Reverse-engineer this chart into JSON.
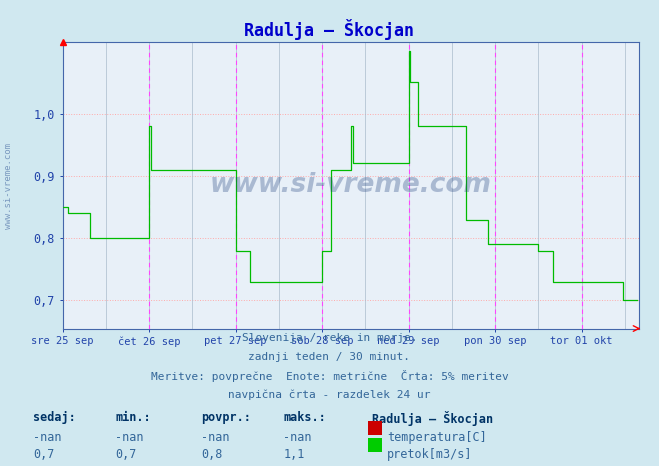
{
  "title": "Radulja – Škocjan",
  "title_color": "#0000cc",
  "bg_color": "#d0e8f0",
  "plot_bg_color": "#e8f0f8",
  "grid_color_h": "#ffaaaa",
  "grid_color_v": "#ccddee",
  "vline_day_color": "#ff44ff",
  "vline_12h_color": "#aabbcc",
  "line_color_flow": "#00bb00",
  "axis_color": "#4466aa",
  "tick_color": "#2244aa",
  "ylim": [
    0.655,
    1.115
  ],
  "yticks": [
    0.7,
    0.8,
    0.9,
    1.0
  ],
  "footer_line1": "Slovenija / reke in morje.",
  "footer_line2": "zadnji teden / 30 minut.",
  "footer_line3": "Meritve: povprečne  Enote: metrične  Črta: 5% meritev",
  "footer_line4": "navpična črta - razdelek 24 ur",
  "watermark": "www.si-vreme.com",
  "legend_title": "Radulja – Škocjan",
  "legend_temp_label": "temperatura[C]",
  "legend_flow_label": "pretok[m3/s]",
  "table_headers": [
    "sedaj:",
    "min.:",
    "povpr.:",
    "maks.:"
  ],
  "table_row_temp": [
    "-nan",
    "-nan",
    "-nan",
    "-nan"
  ],
  "table_row_flow": [
    "0,7",
    "0,7",
    "0,8",
    "1,1"
  ],
  "x_tick_labels": [
    "sre 25 sep",
    "čet 26 sep",
    "pet 27 sep",
    "sob 28 sep",
    "ned 29 sep",
    "pon 30 sep",
    "tor 01 okt"
  ],
  "points_per_day": 48,
  "flow_data": [
    0.85,
    0.85,
    0.85,
    0.84,
    0.84,
    0.84,
    0.84,
    0.84,
    0.84,
    0.84,
    0.84,
    0.84,
    0.84,
    0.84,
    0.84,
    0.8,
    0.8,
    0.8,
    0.8,
    0.8,
    0.8,
    0.8,
    0.8,
    0.8,
    0.8,
    0.8,
    0.8,
    0.8,
    0.8,
    0.8,
    0.8,
    0.8,
    0.8,
    0.8,
    0.8,
    0.8,
    0.8,
    0.8,
    0.8,
    0.8,
    0.8,
    0.8,
    0.8,
    0.8,
    0.8,
    0.8,
    0.8,
    0.8,
    0.98,
    0.91,
    0.91,
    0.91,
    0.91,
    0.91,
    0.91,
    0.91,
    0.91,
    0.91,
    0.91,
    0.91,
    0.91,
    0.91,
    0.91,
    0.91,
    0.91,
    0.91,
    0.91,
    0.91,
    0.91,
    0.91,
    0.91,
    0.91,
    0.91,
    0.91,
    0.91,
    0.91,
    0.91,
    0.91,
    0.91,
    0.91,
    0.91,
    0.91,
    0.91,
    0.91,
    0.91,
    0.91,
    0.91,
    0.91,
    0.91,
    0.91,
    0.91,
    0.91,
    0.91,
    0.91,
    0.91,
    0.91,
    0.78,
    0.78,
    0.78,
    0.78,
    0.78,
    0.78,
    0.78,
    0.78,
    0.73,
    0.73,
    0.73,
    0.73,
    0.73,
    0.73,
    0.73,
    0.73,
    0.73,
    0.73,
    0.73,
    0.73,
    0.73,
    0.73,
    0.73,
    0.73,
    0.73,
    0.73,
    0.73,
    0.73,
    0.73,
    0.73,
    0.73,
    0.73,
    0.73,
    0.73,
    0.73,
    0.73,
    0.73,
    0.73,
    0.73,
    0.73,
    0.73,
    0.73,
    0.73,
    0.73,
    0.73,
    0.73,
    0.73,
    0.73,
    0.78,
    0.78,
    0.78,
    0.78,
    0.78,
    0.91,
    0.91,
    0.91,
    0.91,
    0.91,
    0.91,
    0.91,
    0.91,
    0.91,
    0.91,
    0.91,
    0.98,
    0.92,
    0.92,
    0.92,
    0.92,
    0.92,
    0.92,
    0.92,
    0.92,
    0.92,
    0.92,
    0.92,
    0.92,
    0.92,
    0.92,
    0.92,
    0.92,
    0.92,
    0.92,
    0.92,
    0.92,
    0.92,
    0.92,
    0.92,
    0.92,
    0.92,
    0.92,
    0.92,
    0.92,
    0.92,
    0.92,
    0.92,
    1.1,
    1.05,
    1.05,
    1.05,
    1.05,
    0.98,
    0.98,
    0.98,
    0.98,
    0.98,
    0.98,
    0.98,
    0.98,
    0.98,
    0.98,
    0.98,
    0.98,
    0.98,
    0.98,
    0.98,
    0.98,
    0.98,
    0.98,
    0.98,
    0.98,
    0.98,
    0.98,
    0.98,
    0.98,
    0.98,
    0.98,
    0.98,
    0.83,
    0.83,
    0.83,
    0.83,
    0.83,
    0.83,
    0.83,
    0.83,
    0.83,
    0.83,
    0.83,
    0.83,
    0.79,
    0.79,
    0.79,
    0.79,
    0.79,
    0.79,
    0.79,
    0.79,
    0.79,
    0.79,
    0.79,
    0.79,
    0.79,
    0.79,
    0.79,
    0.79,
    0.79,
    0.79,
    0.79,
    0.79,
    0.79,
    0.79,
    0.79,
    0.79,
    0.79,
    0.79,
    0.79,
    0.79,
    0.78,
    0.78,
    0.78,
    0.78,
    0.78,
    0.78,
    0.78,
    0.78,
    0.73,
    0.73,
    0.73,
    0.73,
    0.73,
    0.73,
    0.73,
    0.73,
    0.73,
    0.73,
    0.73,
    0.73,
    0.73,
    0.73,
    0.73,
    0.73,
    0.73,
    0.73,
    0.73,
    0.73,
    0.73,
    0.73,
    0.73,
    0.73,
    0.73,
    0.73,
    0.73,
    0.73,
    0.73,
    0.73,
    0.73,
    0.73,
    0.73,
    0.73,
    0.73,
    0.73,
    0.73,
    0.73,
    0.73,
    0.7,
    0.7,
    0.7,
    0.7,
    0.7,
    0.7,
    0.7,
    0.7,
    0.7
  ]
}
